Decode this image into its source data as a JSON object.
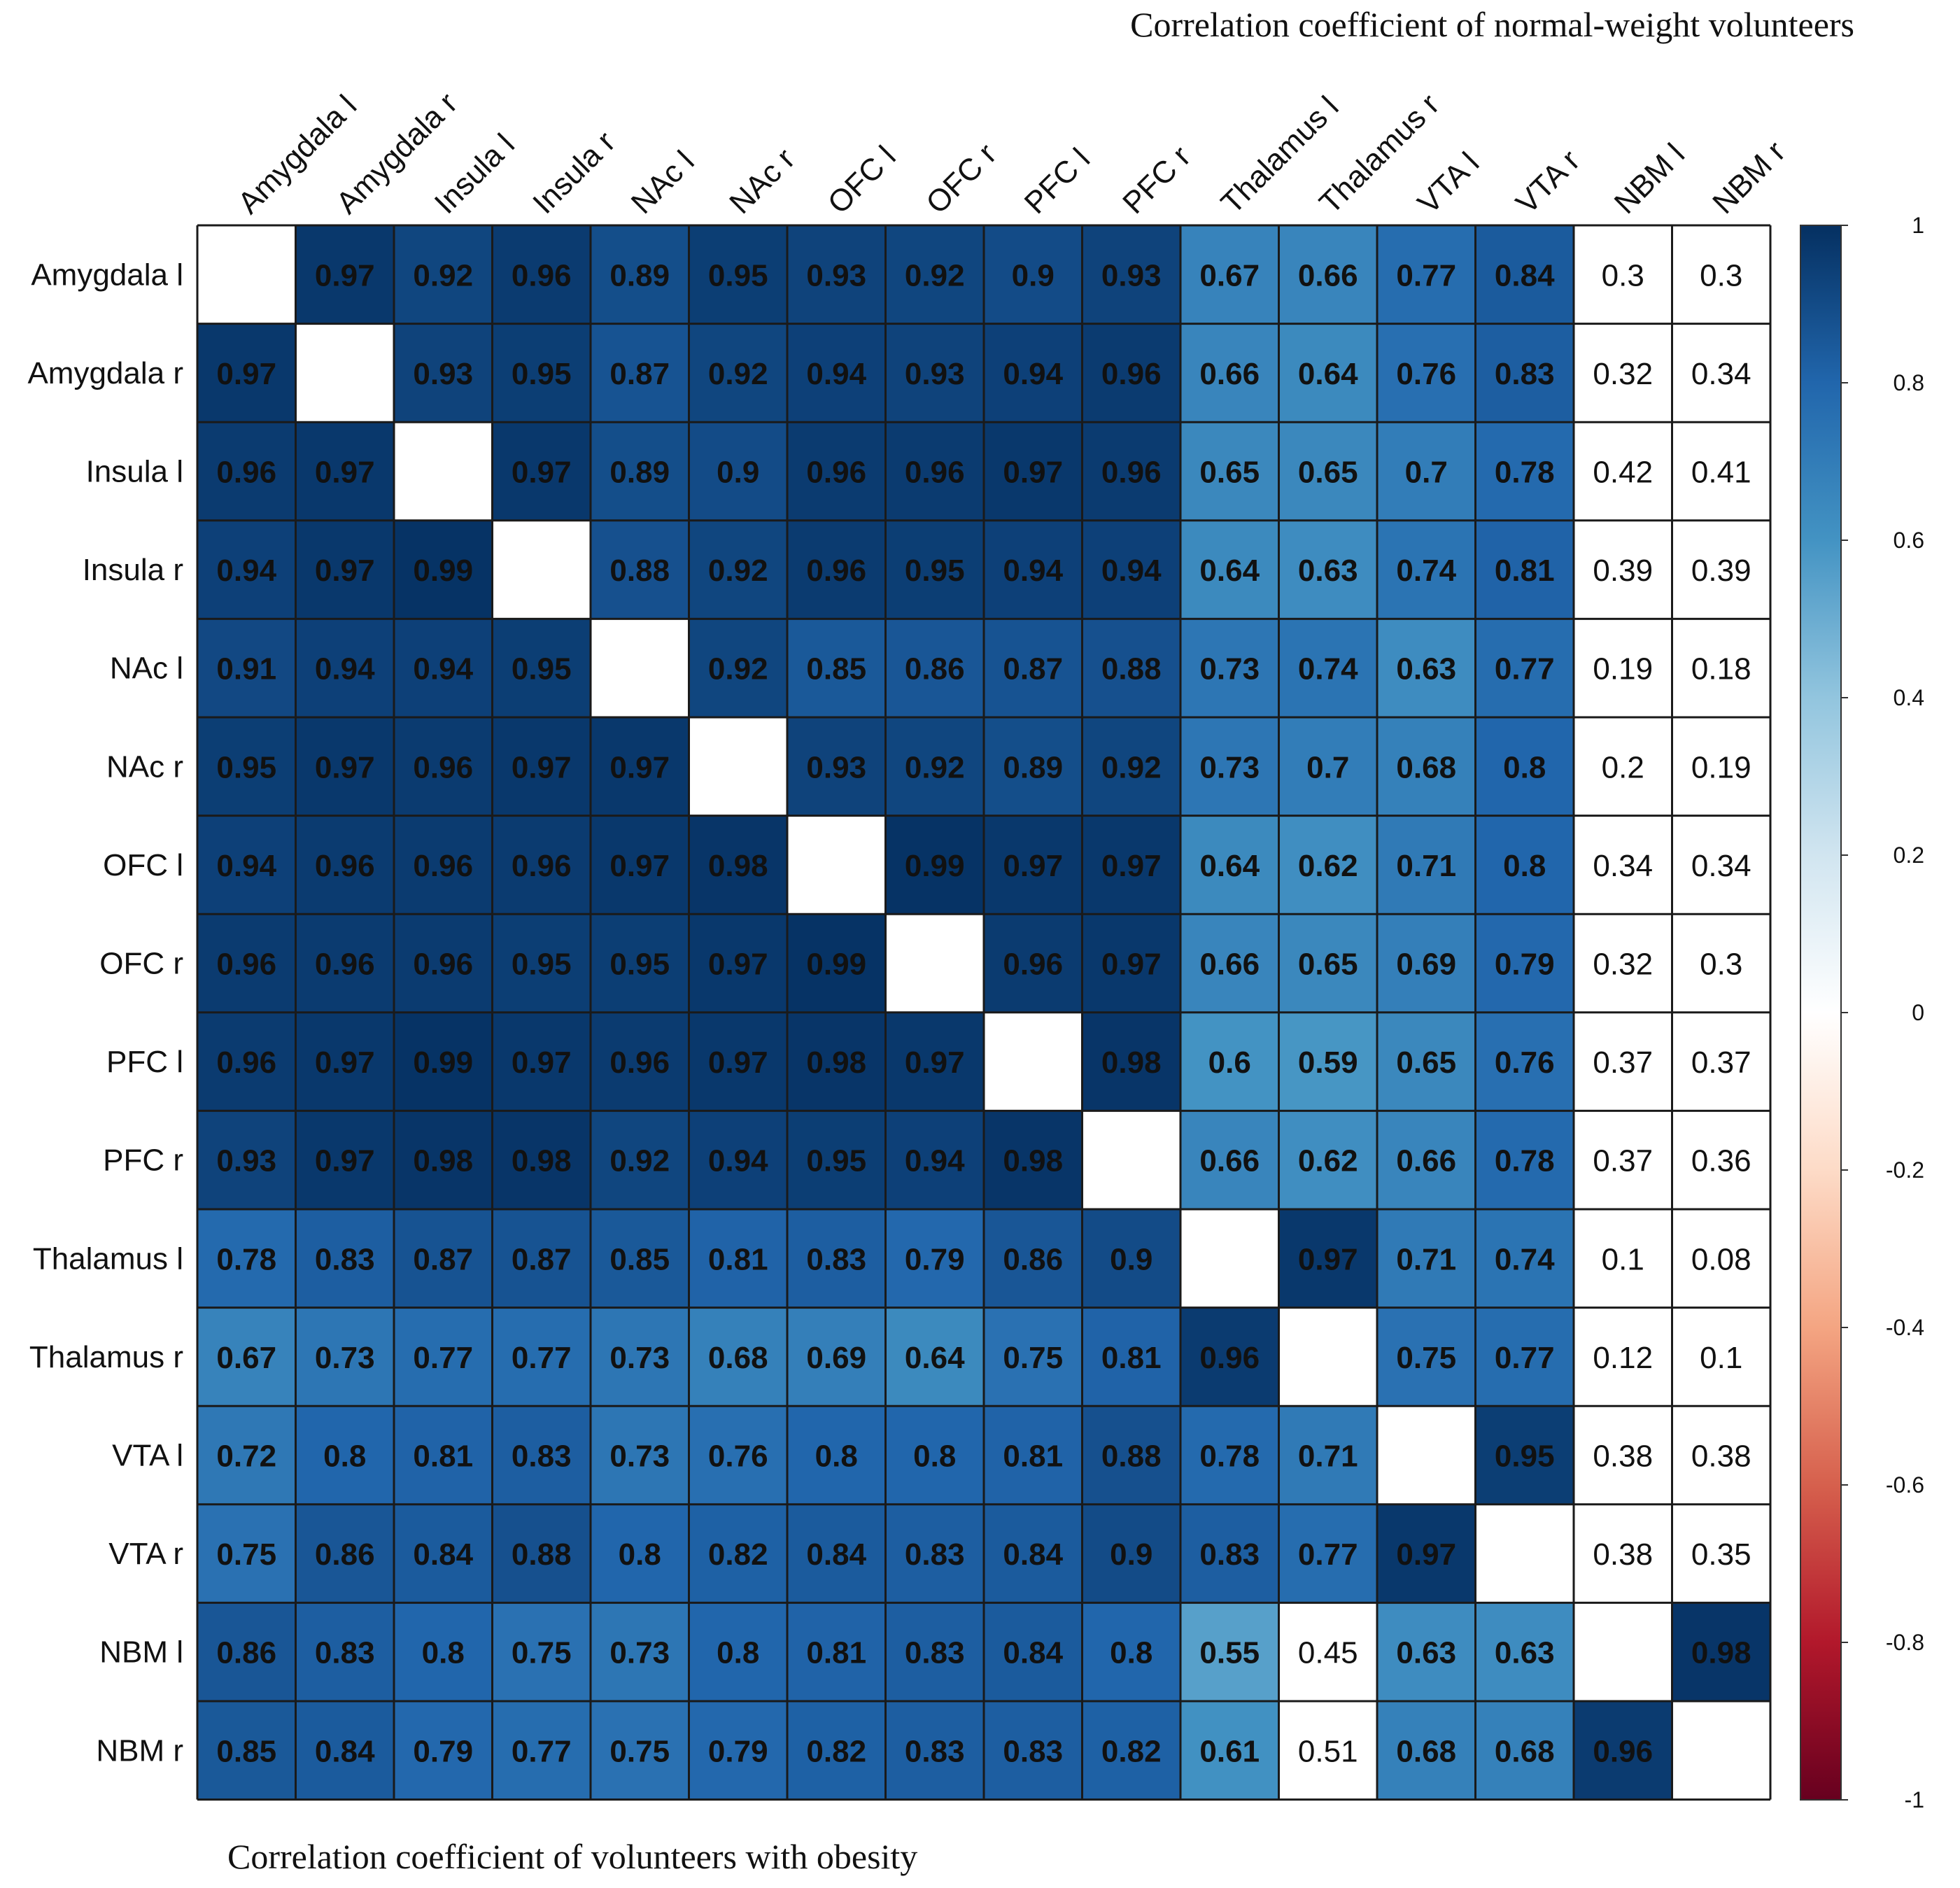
{
  "chart_data": {
    "type": "heatmap",
    "top_title": "Correlation coefficient of normal-weight volunteers",
    "bottom_title": "Correlation coefficient of volunteers with obesity",
    "labels": [
      "Amygdala l",
      "Amygdala r",
      "Insula l",
      "Insula r",
      "NAc l",
      "NAc r",
      "OFC l",
      "OFC r",
      "PFC l",
      "PFC r",
      "Thalamus l",
      "Thalamus r",
      "VTA l",
      "VTA r",
      "NBM l",
      "NBM r"
    ],
    "matrix": [
      [
        null,
        0.97,
        0.92,
        0.96,
        0.89,
        0.95,
        0.93,
        0.92,
        0.9,
        0.93,
        0.67,
        0.66,
        0.77,
        0.84,
        0.3,
        0.3
      ],
      [
        0.97,
        null,
        0.93,
        0.95,
        0.87,
        0.92,
        0.94,
        0.93,
        0.94,
        0.96,
        0.66,
        0.64,
        0.76,
        0.83,
        0.32,
        0.34
      ],
      [
        0.96,
        0.97,
        null,
        0.97,
        0.89,
        0.9,
        0.96,
        0.96,
        0.97,
        0.96,
        0.65,
        0.65,
        0.7,
        0.78,
        0.42,
        0.41
      ],
      [
        0.94,
        0.97,
        0.99,
        null,
        0.88,
        0.92,
        0.96,
        0.95,
        0.94,
        0.94,
        0.64,
        0.63,
        0.74,
        0.81,
        0.39,
        0.39
      ],
      [
        0.91,
        0.94,
        0.94,
        0.95,
        null,
        0.92,
        0.85,
        0.86,
        0.87,
        0.88,
        0.73,
        0.74,
        0.63,
        0.77,
        0.19,
        0.18
      ],
      [
        0.95,
        0.97,
        0.96,
        0.97,
        0.97,
        null,
        0.93,
        0.92,
        0.89,
        0.92,
        0.73,
        0.7,
        0.68,
        0.8,
        0.2,
        0.19
      ],
      [
        0.94,
        0.96,
        0.96,
        0.96,
        0.97,
        0.98,
        null,
        0.99,
        0.97,
        0.97,
        0.64,
        0.62,
        0.71,
        0.8,
        0.34,
        0.34
      ],
      [
        0.96,
        0.96,
        0.96,
        0.95,
        0.95,
        0.97,
        0.99,
        null,
        0.96,
        0.97,
        0.66,
        0.65,
        0.69,
        0.79,
        0.32,
        0.3
      ],
      [
        0.96,
        0.97,
        0.99,
        0.97,
        0.96,
        0.97,
        0.98,
        0.97,
        null,
        0.98,
        0.6,
        0.59,
        0.65,
        0.76,
        0.37,
        0.37
      ],
      [
        0.93,
        0.97,
        0.98,
        0.98,
        0.92,
        0.94,
        0.95,
        0.94,
        0.98,
        null,
        0.66,
        0.62,
        0.66,
        0.78,
        0.37,
        0.36
      ],
      [
        0.78,
        0.83,
        0.87,
        0.87,
        0.85,
        0.81,
        0.83,
        0.79,
        0.86,
        0.9,
        null,
        0.97,
        0.71,
        0.74,
        0.1,
        0.08
      ],
      [
        0.67,
        0.73,
        0.77,
        0.77,
        0.73,
        0.68,
        0.69,
        0.64,
        0.75,
        0.81,
        0.96,
        null,
        0.75,
        0.77,
        0.12,
        0.1
      ],
      [
        0.72,
        0.8,
        0.81,
        0.83,
        0.73,
        0.76,
        0.8,
        0.8,
        0.81,
        0.88,
        0.78,
        0.71,
        null,
        0.95,
        0.38,
        0.38
      ],
      [
        0.75,
        0.86,
        0.84,
        0.88,
        0.8,
        0.82,
        0.84,
        0.83,
        0.84,
        0.9,
        0.83,
        0.77,
        0.97,
        null,
        0.38,
        0.35
      ],
      [
        0.86,
        0.83,
        0.8,
        0.75,
        0.73,
        0.8,
        0.81,
        0.83,
        0.84,
        0.8,
        0.55,
        0.45,
        0.63,
        0.63,
        null,
        0.98
      ],
      [
        0.85,
        0.84,
        0.79,
        0.77,
        0.75,
        0.79,
        0.82,
        0.83,
        0.83,
        0.82,
        0.61,
        0.51,
        0.68,
        0.68,
        0.96,
        null
      ]
    ],
    "white_cells": [
      [
        0,
        14
      ],
      [
        0,
        15
      ],
      [
        1,
        14
      ],
      [
        1,
        15
      ],
      [
        2,
        14
      ],
      [
        2,
        15
      ],
      [
        3,
        14
      ],
      [
        3,
        15
      ],
      [
        4,
        14
      ],
      [
        4,
        15
      ],
      [
        5,
        14
      ],
      [
        5,
        15
      ],
      [
        6,
        14
      ],
      [
        6,
        15
      ],
      [
        7,
        14
      ],
      [
        7,
        15
      ],
      [
        8,
        14
      ],
      [
        8,
        15
      ],
      [
        9,
        14
      ],
      [
        9,
        15
      ],
      [
        10,
        14
      ],
      [
        10,
        15
      ],
      [
        11,
        14
      ],
      [
        11,
        15
      ],
      [
        12,
        14
      ],
      [
        12,
        15
      ],
      [
        13,
        14
      ],
      [
        13,
        15
      ],
      [
        14,
        11
      ],
      [
        15,
        11
      ]
    ],
    "colorbar": {
      "range": [
        -1,
        1
      ],
      "ticks": [
        "1",
        "0.8",
        "0.6",
        "0.4",
        "0.2",
        "0",
        "-0.2",
        "-0.4",
        "-0.6",
        "-0.8",
        "-1"
      ],
      "stops": [
        "#67001f",
        "#b2182b",
        "#d6604d",
        "#f4a582",
        "#fddbc7",
        "#ffffff",
        "#d1e5f0",
        "#92c5de",
        "#4393c3",
        "#2166ac",
        "#053061"
      ]
    },
    "colors": {
      "grid_line": "#1a1a1a",
      "dark_text": "#111111",
      "outer_border": "#333333"
    }
  }
}
